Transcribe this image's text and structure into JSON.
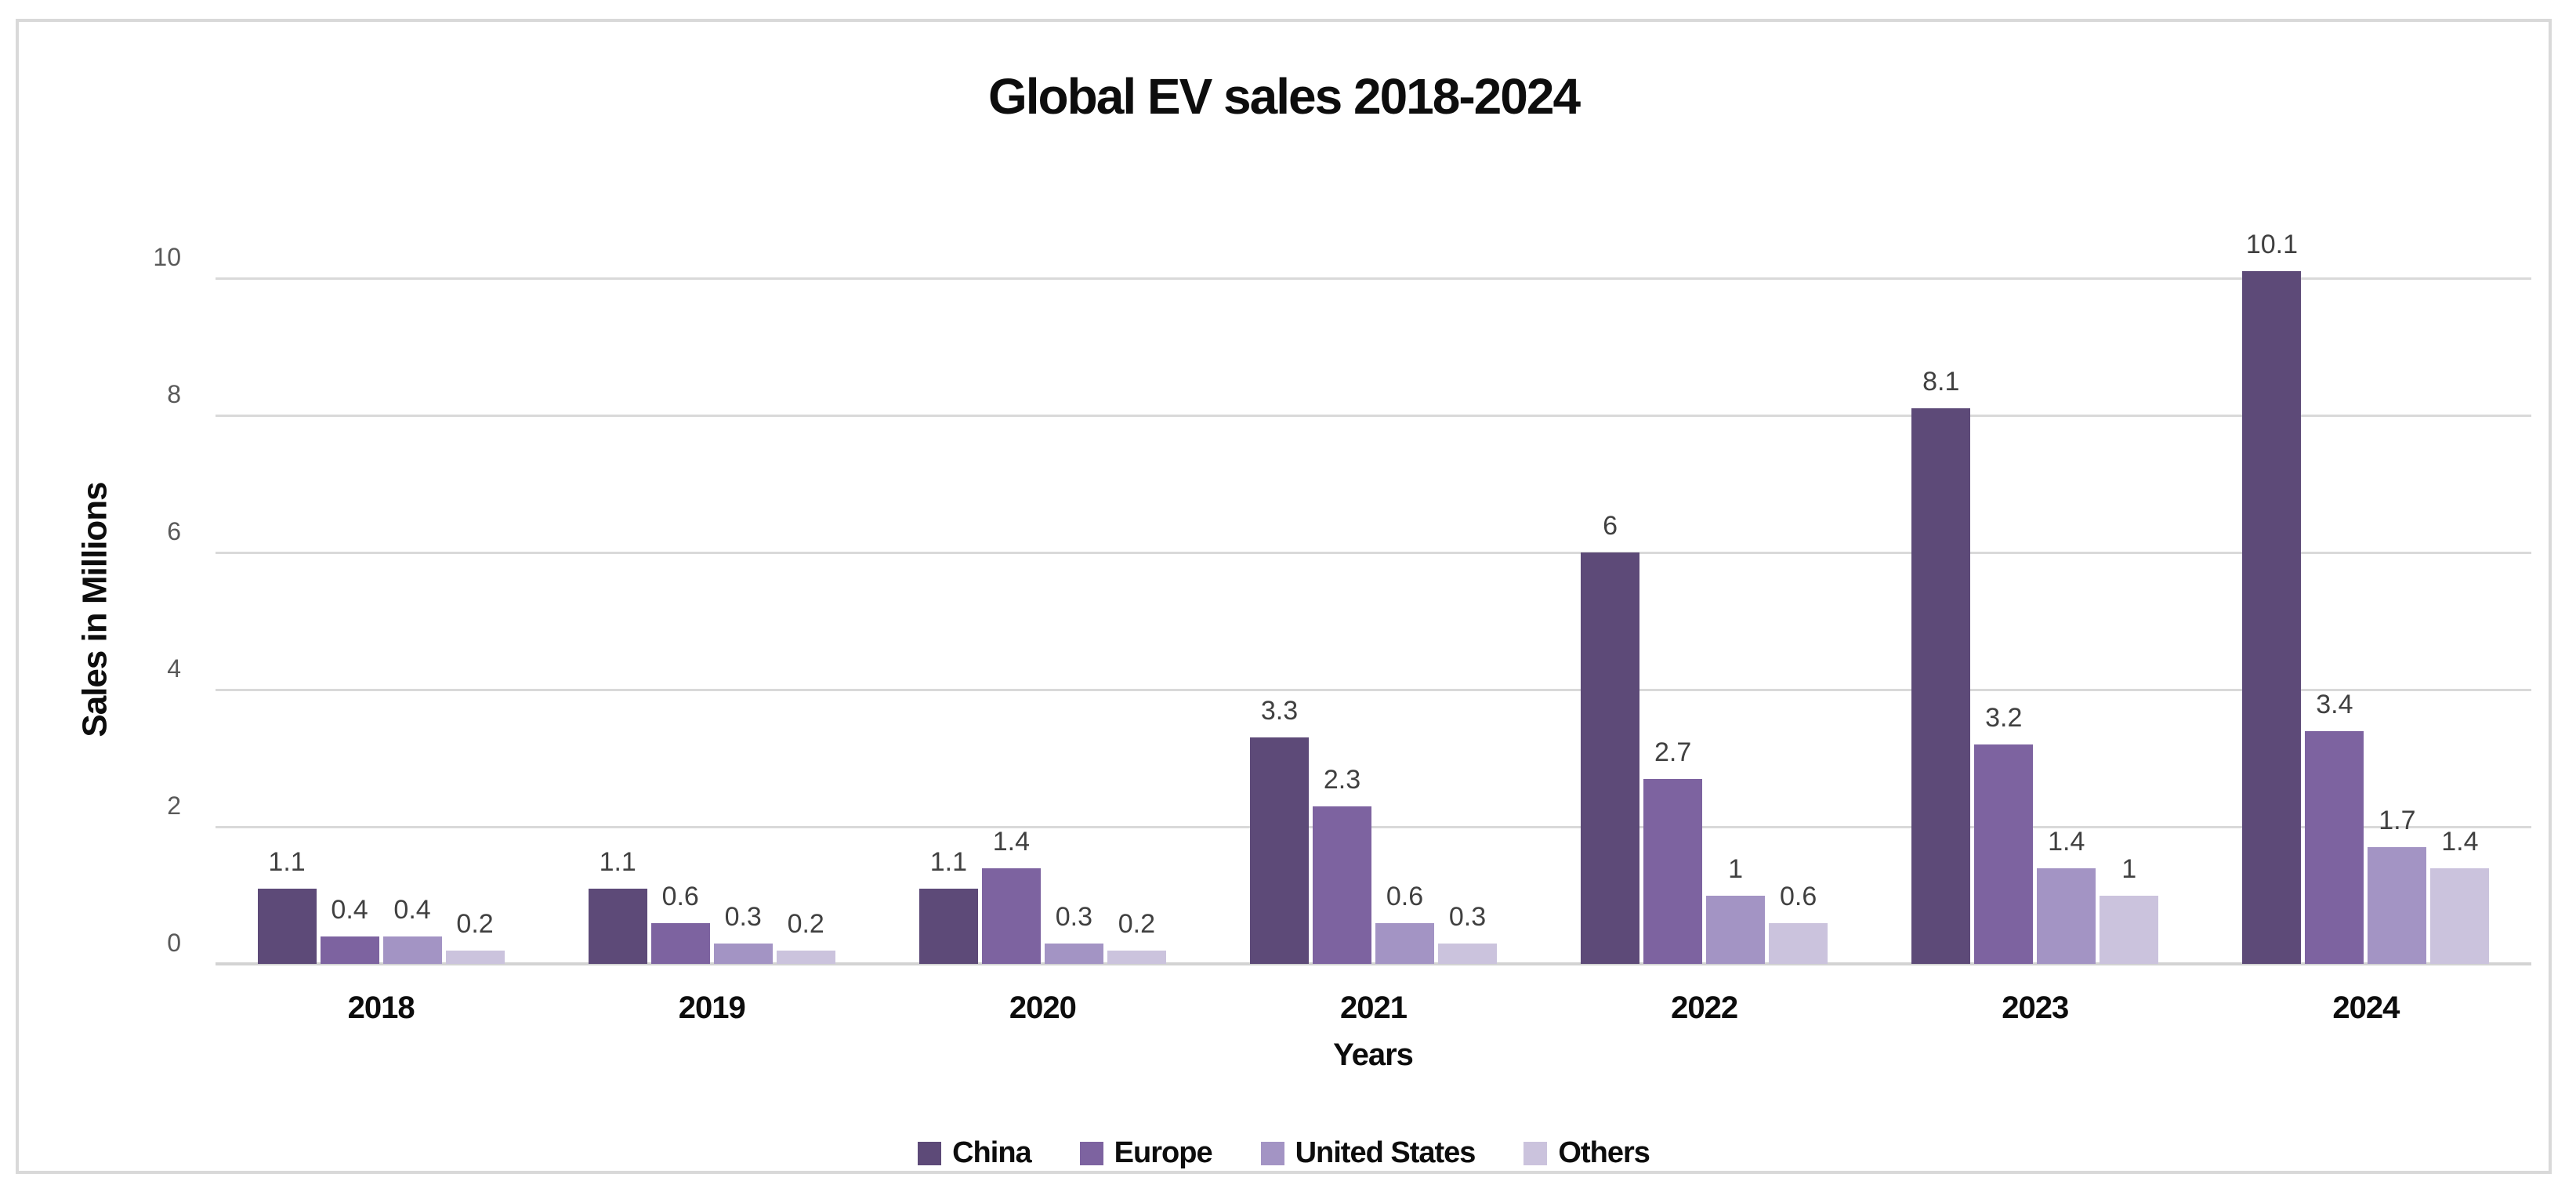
{
  "title": "Global EV sales 2018-2024",
  "axes": {
    "y_title": "Sales in Millions",
    "x_title": "Years"
  },
  "colors": {
    "china": "#5d4a78",
    "europe": "#7d63a0",
    "united_states": "#a394c4",
    "others": "#cbc3dd",
    "gridline": "#d9d9d9",
    "tick_text": "#595959",
    "data_label_text": "#404040",
    "heading_text": "#0d0d0d"
  },
  "chart_data": {
    "type": "bar",
    "title": "Global EV sales 2018-2024",
    "xlabel": "Years",
    "ylabel": "Sales in Millions",
    "ylim": [
      0,
      10
    ],
    "y_ticks": [
      0,
      2,
      4,
      6,
      8,
      10
    ],
    "grid": true,
    "legend_position": "bottom",
    "categories": [
      "2018",
      "2019",
      "2020",
      "2021",
      "2022",
      "2023",
      "2024"
    ],
    "series": [
      {
        "name": "China",
        "color": "#5d4a78",
        "values": [
          1.1,
          1.1,
          1.1,
          3.3,
          6,
          8.1,
          10.1
        ]
      },
      {
        "name": "Europe",
        "color": "#7d63a0",
        "values": [
          0.4,
          0.6,
          1.4,
          2.3,
          2.7,
          3.2,
          3.4
        ]
      },
      {
        "name": "United States",
        "color": "#a394c4",
        "values": [
          0.4,
          0.3,
          0.3,
          0.6,
          1,
          1.4,
          1.7
        ]
      },
      {
        "name": "Others",
        "color": "#cbc3dd",
        "values": [
          0.2,
          0.2,
          0.2,
          0.3,
          0.6,
          1,
          1.4
        ]
      }
    ]
  }
}
